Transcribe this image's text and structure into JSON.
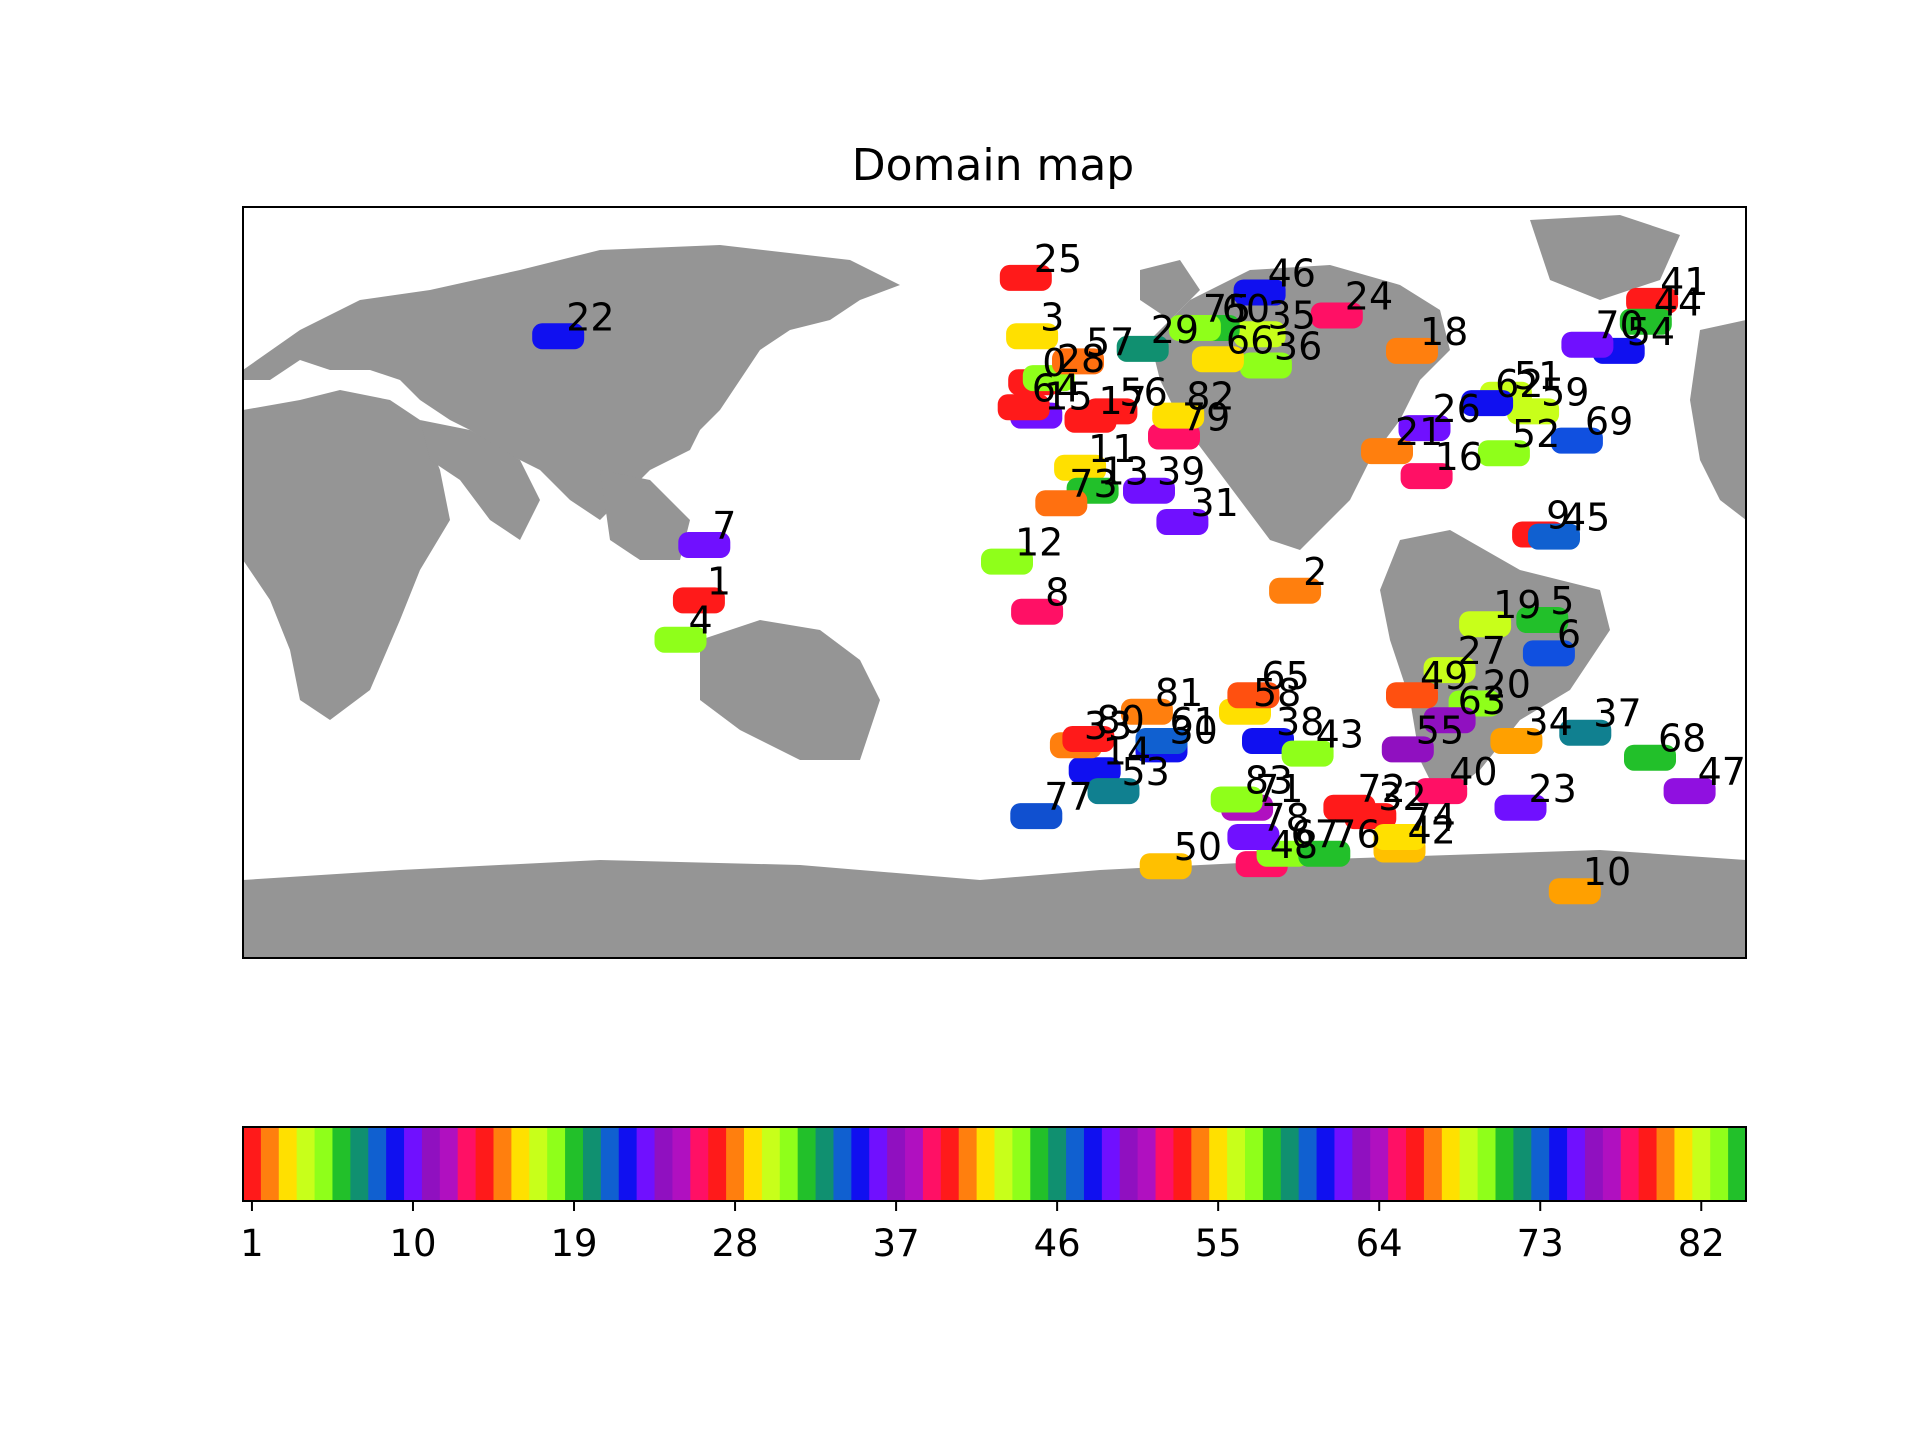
{
  "title": "Domain map",
  "map": {
    "land_color": "#959595",
    "ocean_color": "#ffffff",
    "domains": [
      {
        "id": "0",
        "lon": -170.5,
        "lat": 48.0,
        "color": "#ff1a1a"
      },
      {
        "id": "1",
        "lon": 109.2,
        "lat": -4.3,
        "color": "#ff1a1a"
      },
      {
        "id": "2",
        "lon": -108.0,
        "lat": -2.0,
        "color": "#ff7f0e"
      },
      {
        "id": "3",
        "lon": -171.0,
        "lat": 59.0,
        "color": "#ffe000"
      },
      {
        "id": "4",
        "lon": 104.8,
        "lat": -13.7,
        "color": "#8fff1a"
      },
      {
        "id": "5",
        "lon": -48.8,
        "lat": -9.0,
        "color": "#22c02a"
      },
      {
        "id": "6",
        "lon": -47.2,
        "lat": -17.0,
        "color": "#1050e0"
      },
      {
        "id": "7",
        "lon": 110.5,
        "lat": 9.0,
        "color": "#7010ff"
      },
      {
        "id": "8",
        "lon": -169.8,
        "lat": -7.0,
        "color": "#ff1065"
      },
      {
        "id": "9",
        "lon": -49.8,
        "lat": 11.5,
        "color": "#ff1a1a"
      },
      {
        "id": "10",
        "lon": -41.0,
        "lat": -74.0,
        "color": "#ffa000"
      },
      {
        "id": "11",
        "lon": -159.5,
        "lat": 27.5,
        "color": "#ffe000"
      },
      {
        "id": "12",
        "lon": -177.0,
        "lat": 5.0,
        "color": "#8fff1a"
      },
      {
        "id": "13",
        "lon": -156.5,
        "lat": 22.0,
        "color": "#22c02a"
      },
      {
        "id": "14",
        "lon": -156.0,
        "lat": -45.0,
        "color": "#1010f0"
      },
      {
        "id": "15",
        "lon": -170.0,
        "lat": 40.0,
        "color": "#7010ff"
      },
      {
        "id": "16",
        "lon": -76.5,
        "lat": 25.5,
        "color": "#ff1065"
      },
      {
        "id": "17",
        "lon": -157.0,
        "lat": 39.0,
        "color": "#ff1a1a"
      },
      {
        "id": "18",
        "lon": -80.0,
        "lat": 55.5,
        "color": "#ff7f0e"
      },
      {
        "id": "19",
        "lon": -62.5,
        "lat": -10.0,
        "color": "#c8ff1a"
      },
      {
        "id": "20",
        "lon": -65.0,
        "lat": -29.0,
        "color": "#8fff1a"
      },
      {
        "id": "21",
        "lon": -86.0,
        "lat": 31.5,
        "color": "#ff7f0e"
      },
      {
        "id": "22",
        "lon": 75.5,
        "lat": 59.0,
        "color": "#1010f0"
      },
      {
        "id": "23",
        "lon": -54.0,
        "lat": -54.0,
        "color": "#7010ff"
      },
      {
        "id": "24",
        "lon": -98.0,
        "lat": 64.0,
        "color": "#ff1065"
      },
      {
        "id": "25",
        "lon": -172.5,
        "lat": 73.0,
        "color": "#ff1a1a"
      },
      {
        "id": "26",
        "lon": -77.0,
        "lat": 37.0,
        "color": "#7010ff"
      },
      {
        "id": "27",
        "lon": -71.0,
        "lat": -21.0,
        "color": "#c8ff1a"
      },
      {
        "id": "28",
        "lon": -167.0,
        "lat": 49.0,
        "color": "#8fff1a"
      },
      {
        "id": "29",
        "lon": -144.5,
        "lat": 56.0,
        "color": "#109070"
      },
      {
        "id": "30",
        "lon": -140.0,
        "lat": -40.0,
        "color": "#1010f0"
      },
      {
        "id": "31",
        "lon": -135.0,
        "lat": 14.5,
        "color": "#7010ff"
      },
      {
        "id": "32",
        "lon": -90.0,
        "lat": -56.0,
        "color": "#ff1a1a"
      },
      {
        "id": "33",
        "lon": -160.5,
        "lat": -39.0,
        "color": "#ff7f0e"
      },
      {
        "id": "34",
        "lon": -55.0,
        "lat": -38.0,
        "color": "#ffa000"
      },
      {
        "id": "35",
        "lon": -116.5,
        "lat": 59.5,
        "color": "#c8ff1a"
      },
      {
        "id": "36",
        "lon": -115.0,
        "lat": 52.0,
        "color": "#8fff1a"
      },
      {
        "id": "37",
        "lon": -38.5,
        "lat": -36.0,
        "color": "#108090"
      },
      {
        "id": "38",
        "lon": -114.5,
        "lat": -38.0,
        "color": "#1010f0"
      },
      {
        "id": "39",
        "lon": -143.0,
        "lat": 22.0,
        "color": "#7010ff"
      },
      {
        "id": "40",
        "lon": -73.0,
        "lat": -50.0,
        "color": "#ff1065"
      },
      {
        "id": "41",
        "lon": -22.5,
        "lat": 67.5,
        "color": "#ff1a1a"
      },
      {
        "id": "42",
        "lon": -83.0,
        "lat": -64.0,
        "color": "#ffc000"
      },
      {
        "id": "43",
        "lon": -105.0,
        "lat": -41.0,
        "color": "#8fff1a"
      },
      {
        "id": "44",
        "lon": -24.0,
        "lat": 62.5,
        "color": "#22c02a"
      },
      {
        "id": "45",
        "lon": -46.0,
        "lat": 11.0,
        "color": "#1060d0"
      },
      {
        "id": "46",
        "lon": -116.5,
        "lat": 69.5,
        "color": "#1010f0"
      },
      {
        "id": "47",
        "lon": -13.5,
        "lat": -50.0,
        "color": "#9010e0"
      },
      {
        "id": "48",
        "lon": -116.0,
        "lat": -67.5,
        "color": "#ff1065"
      },
      {
        "id": "49",
        "lon": -80.0,
        "lat": -27.0,
        "color": "#ff5010"
      },
      {
        "id": "50",
        "lon": -139.0,
        "lat": -68.0,
        "color": "#ffc000"
      },
      {
        "id": "51",
        "lon": -57.5,
        "lat": 45.0,
        "color": "#c8ff1a"
      },
      {
        "id": "52",
        "lon": -58.0,
        "lat": 31.0,
        "color": "#8fff1a"
      },
      {
        "id": "53",
        "lon": -151.5,
        "lat": -50.0,
        "color": "#108090"
      },
      {
        "id": "54",
        "lon": -30.5,
        "lat": 55.5,
        "color": "#1010f0"
      },
      {
        "id": "55",
        "lon": -81.0,
        "lat": -40.0,
        "color": "#9010c0"
      },
      {
        "id": "56",
        "lon": -152.0,
        "lat": 41.0,
        "color": "#ff1a1a"
      },
      {
        "id": "57",
        "lon": -160.0,
        "lat": 53.0,
        "color": "#ff7010"
      },
      {
        "id": "58",
        "lon": -120.0,
        "lat": -31.0,
        "color": "#ffe000"
      },
      {
        "id": "59",
        "lon": -51.0,
        "lat": 41.0,
        "color": "#c8ff1a"
      },
      {
        "id": "60",
        "lon": -127.5,
        "lat": 61.0,
        "color": "#22c02a"
      },
      {
        "id": "61",
        "lon": -140.0,
        "lat": -38.0,
        "color": "#1060d0"
      },
      {
        "id": "62",
        "lon": -62.0,
        "lat": 43.0,
        "color": "#1010f0"
      },
      {
        "id": "63",
        "lon": -71.0,
        "lat": -33.0,
        "color": "#9010c0"
      },
      {
        "id": "64",
        "lon": -173.0,
        "lat": 42.0,
        "color": "#ff1a1a"
      },
      {
        "id": "65",
        "lon": -118.0,
        "lat": -27.0,
        "color": "#ff5010"
      },
      {
        "id": "66",
        "lon": -126.5,
        "lat": 53.5,
        "color": "#ffe000"
      },
      {
        "id": "67",
        "lon": -111.0,
        "lat": -65.0,
        "color": "#8fff1a"
      },
      {
        "id": "68",
        "lon": -23.0,
        "lat": -42.0,
        "color": "#22c02a"
      },
      {
        "id": "69",
        "lon": -40.5,
        "lat": 34.0,
        "color": "#1050e0"
      },
      {
        "id": "70",
        "lon": -38.0,
        "lat": 57.0,
        "color": "#7010ff"
      },
      {
        "id": "71",
        "lon": -119.5,
        "lat": -54.0,
        "color": "#b010c0"
      },
      {
        "id": "72",
        "lon": -95.0,
        "lat": -54.0,
        "color": "#ff1a1a"
      },
      {
        "id": "73",
        "lon": -164.0,
        "lat": 19.0,
        "color": "#ff7010"
      },
      {
        "id": "74",
        "lon": -83.0,
        "lat": -61.0,
        "color": "#ffe000"
      },
      {
        "id": "75",
        "lon": -132.0,
        "lat": 61.0,
        "color": "#8fff1a"
      },
      {
        "id": "76",
        "lon": -101.0,
        "lat": -65.0,
        "color": "#22c02a"
      },
      {
        "id": "77",
        "lon": -170.0,
        "lat": -56.0,
        "color": "#1050d0"
      },
      {
        "id": "78",
        "lon": -118.0,
        "lat": -61.0,
        "color": "#7010ff"
      },
      {
        "id": "79",
        "lon": -137.0,
        "lat": 35.0,
        "color": "#ff1065"
      },
      {
        "id": "80",
        "lon": -157.5,
        "lat": -37.5,
        "color": "#ff1a1a"
      },
      {
        "id": "81",
        "lon": -143.5,
        "lat": -31.0,
        "color": "#ff7f0e"
      },
      {
        "id": "82",
        "lon": -136.0,
        "lat": 40.0,
        "color": "#ffe000"
      },
      {
        "id": "83",
        "lon": -122.0,
        "lat": -52.0,
        "color": "#8fff1a"
      }
    ]
  },
  "colorbar": {
    "colors": [
      "#ff1a1a",
      "#ff7f0e",
      "#ffe000",
      "#c8ff1a",
      "#8fff1a",
      "#22c02a",
      "#109070",
      "#1060d0",
      "#1010f0",
      "#7010ff",
      "#9010c0",
      "#b010c0",
      "#ff1065"
    ],
    "n_bins": 84,
    "tick_labels": [
      "1",
      "10",
      "19",
      "28",
      "37",
      "46",
      "55",
      "64",
      "73",
      "82"
    ]
  }
}
